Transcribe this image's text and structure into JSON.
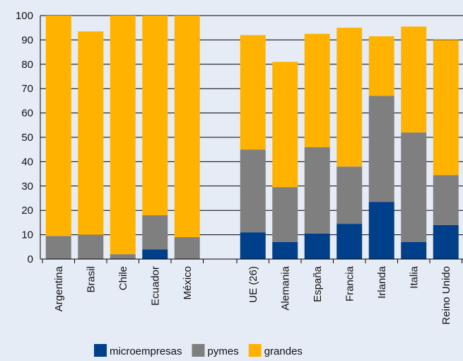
{
  "colors": {
    "background": "#e6ecf6",
    "microempresas": "#003f8a",
    "pymes": "#7f7f7f",
    "grandes": "#ffb300",
    "gridline": "#000000"
  },
  "chart_data": {
    "type": "bar",
    "stacked": true,
    "title": "",
    "xlabel": "",
    "ylabel": "",
    "ylim": [
      0,
      100
    ],
    "yticks": [
      0,
      10,
      20,
      30,
      40,
      50,
      60,
      70,
      80,
      90,
      100
    ],
    "grid": true,
    "legend_position": "bottom",
    "groups": [
      [
        "Argentina",
        "Brasil",
        "Chile",
        "Ecuador",
        "México"
      ],
      [
        "UE (26)",
        "Alemania",
        "España",
        "Francia",
        "Irlanda",
        "Italia",
        "Reino Unido"
      ]
    ],
    "categories": [
      "Argentina",
      "Brasil",
      "Chile",
      "Ecuador",
      "México",
      "UE (26)",
      "Alemania",
      "España",
      "Francia",
      "Irlanda",
      "Italia",
      "Reino Unido"
    ],
    "series": [
      {
        "name": "microempresas",
        "values": [
          0,
          0,
          0,
          4,
          0,
          11,
          7,
          10.5,
          14.5,
          23.5,
          7,
          14
        ]
      },
      {
        "name": "pymes",
        "values": [
          9.5,
          10,
          2,
          14,
          9,
          34,
          22.5,
          35.5,
          23.5,
          43.5,
          45,
          20.5
        ]
      },
      {
        "name": "grandes",
        "values": [
          90.5,
          83.5,
          98,
          82,
          91,
          47,
          51.5,
          46.5,
          57,
          24.5,
          43.5,
          55.5
        ]
      }
    ]
  }
}
